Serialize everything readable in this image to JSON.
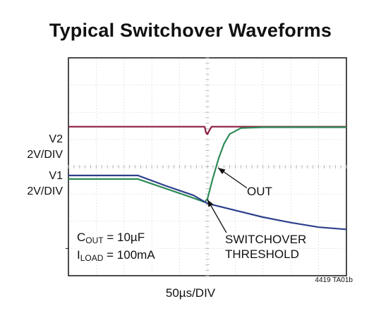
{
  "chart_data": {
    "type": "line",
    "title": "Typical Switchover Waveforms",
    "xlabel": "50µs/DIV",
    "figure_code": "4419 TA01b",
    "channels": [
      {
        "label": "V2",
        "scale": "2V/DIV"
      },
      {
        "label": "V1",
        "scale": "2V/DIV"
      }
    ],
    "grid": {
      "divisions_x": 10,
      "divisions_y": 8,
      "center_crosshair_ticks": true
    },
    "x_range_div": [
      0,
      10
    ],
    "y_range_div": [
      0,
      8
    ],
    "series": [
      {
        "name": "V2",
        "color": "#8b1e3f",
        "points": [
          [
            0,
            5.47
          ],
          [
            4.9,
            5.47
          ],
          [
            4.95,
            5.25
          ],
          [
            5.0,
            5.2
          ],
          [
            5.05,
            5.3
          ],
          [
            5.15,
            5.47
          ],
          [
            10,
            5.47
          ]
        ]
      },
      {
        "name": "OUT",
        "color": "#2e8b57",
        "points": [
          [
            0,
            3.55
          ],
          [
            2.5,
            3.55
          ],
          [
            3.5,
            3.2
          ],
          [
            4.5,
            2.85
          ],
          [
            4.9,
            2.7
          ],
          [
            5.0,
            2.82
          ],
          [
            5.2,
            3.6
          ],
          [
            5.4,
            4.3
          ],
          [
            5.6,
            4.85
          ],
          [
            5.8,
            5.2
          ],
          [
            6.2,
            5.42
          ],
          [
            7,
            5.45
          ],
          [
            10,
            5.45
          ]
        ]
      },
      {
        "name": "V1",
        "color": "#2d3f8c",
        "points": [
          [
            0,
            3.68
          ],
          [
            2.5,
            3.68
          ],
          [
            3.5,
            3.3
          ],
          [
            4.5,
            2.95
          ],
          [
            5.0,
            2.65
          ],
          [
            6,
            2.4
          ],
          [
            7,
            2.15
          ],
          [
            8,
            1.95
          ],
          [
            9,
            1.78
          ],
          [
            10,
            1.7
          ]
        ]
      }
    ],
    "annotations": {
      "out": "OUT",
      "switchover_line1": "SWITCHOVER",
      "switchover_line2": "THRESHOLD",
      "cout_sym": "C",
      "cout_sub": "OUT",
      "cout_val": " = 10µF",
      "iload_sym": "I",
      "iload_sub": "LOAD",
      "iload_val": " = 100mA"
    }
  }
}
